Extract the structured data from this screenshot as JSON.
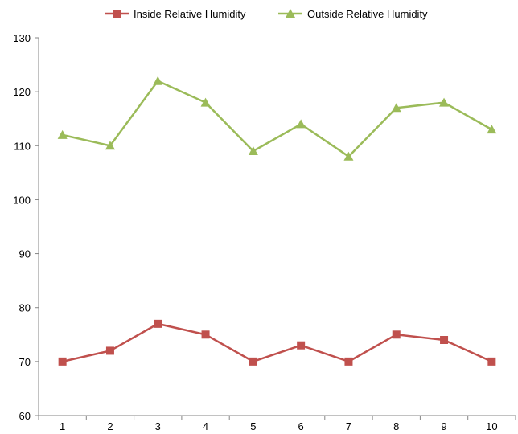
{
  "chart_data": {
    "type": "line",
    "title": "",
    "xlabel": "",
    "ylabel": "",
    "x": [
      "1",
      "2",
      "3",
      "4",
      "5",
      "6",
      "7",
      "8",
      "9",
      "10"
    ],
    "ylim": [
      60,
      130
    ],
    "y_ticks": [
      "60",
      "70",
      "80",
      "90",
      "100",
      "110",
      "120",
      "130"
    ],
    "grid": false,
    "legend_position": "top",
    "series": [
      {
        "name": "Inside Relative Humidity",
        "marker": "square",
        "color": "#c0504d",
        "values": [
          70,
          72,
          77,
          75,
          70,
          73,
          70,
          75,
          74,
          70
        ]
      },
      {
        "name": "Outside Relative Humidity",
        "marker": "triangle",
        "color": "#9bbb59",
        "values": [
          112,
          110,
          122,
          118,
          109,
          114,
          108,
          117,
          118,
          113
        ]
      }
    ]
  }
}
